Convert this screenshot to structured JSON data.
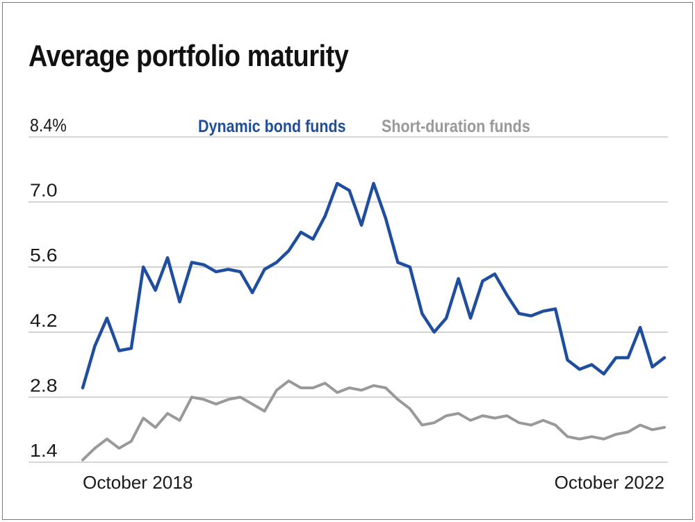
{
  "chart_data": {
    "type": "line",
    "title": "Average portfolio maturity",
    "xlabel": "",
    "ylabel": "",
    "x_tick_labels": [
      "October 2018",
      "October 2022"
    ],
    "y_ticks": [
      {
        "value": 8.4,
        "label": "8.4%"
      },
      {
        "value": 7.0,
        "label": "7.0"
      },
      {
        "value": 5.6,
        "label": "5.6"
      },
      {
        "value": 4.2,
        "label": "4.2"
      },
      {
        "value": 2.8,
        "label": "2.8"
      },
      {
        "value": 1.4,
        "label": "1.4"
      }
    ],
    "ylim": [
      1.4,
      8.4
    ],
    "grid": true,
    "legend_position": "top-center",
    "series": [
      {
        "name": "Dynamic bond funds",
        "color": "#1f4e9e",
        "values": [
          3.0,
          3.9,
          4.5,
          3.8,
          3.85,
          5.6,
          5.1,
          5.8,
          4.85,
          5.7,
          5.65,
          5.5,
          5.55,
          5.5,
          5.05,
          5.55,
          5.7,
          5.95,
          6.35,
          6.2,
          6.7,
          7.4,
          7.25,
          6.5,
          7.4,
          6.65,
          5.7,
          5.6,
          4.6,
          4.2,
          4.5,
          5.35,
          4.5,
          5.3,
          5.45,
          5.0,
          4.6,
          4.55,
          4.65,
          4.7,
          3.6,
          3.4,
          3.5,
          3.3,
          3.65,
          3.65,
          4.3,
          3.45,
          3.65
        ]
      },
      {
        "name": "Short-duration funds",
        "color": "#999999",
        "values": [
          1.45,
          1.7,
          1.9,
          1.7,
          1.85,
          2.35,
          2.15,
          2.45,
          2.3,
          2.8,
          2.75,
          2.65,
          2.75,
          2.8,
          2.65,
          2.5,
          2.95,
          3.15,
          3.0,
          3.0,
          3.1,
          2.9,
          3.0,
          2.95,
          3.05,
          3.0,
          2.75,
          2.55,
          2.2,
          2.25,
          2.4,
          2.45,
          2.3,
          2.4,
          2.35,
          2.4,
          2.25,
          2.2,
          2.3,
          2.2,
          1.95,
          1.9,
          1.95,
          1.9,
          2.0,
          2.05,
          2.2,
          2.1,
          2.15
        ]
      }
    ]
  }
}
